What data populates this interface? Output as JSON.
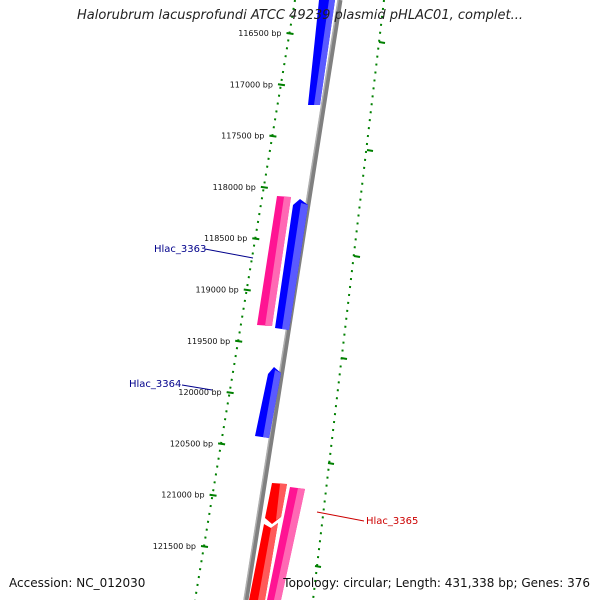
{
  "title": "Halorubrum lacusprofundi ATCC 49239 plasmid pHLAC01, complet...",
  "footer": {
    "accession": "Accession: NC_012030",
    "summary": "Topology: circular; Length: 431,338 bp; Genes: 376"
  },
  "colors": {
    "forward_strand": "#0000ff",
    "reverse_strand": "#ff0000",
    "pseudo_strand": "#ff1493",
    "backbone": "#808080",
    "tick": "#008000"
  },
  "position_ticks": [
    {
      "bp": 116500,
      "label": "116500 bp"
    },
    {
      "bp": 117000,
      "label": "117000 bp"
    },
    {
      "bp": 117500,
      "label": "117500 bp"
    },
    {
      "bp": 118000,
      "label": "118000 bp"
    },
    {
      "bp": 118500,
      "label": "118500 bp"
    },
    {
      "bp": 119000,
      "label": "119000 bp"
    },
    {
      "bp": 119500,
      "label": "119500 bp"
    },
    {
      "bp": 120000,
      "label": "120000 bp"
    },
    {
      "bp": 120500,
      "label": "120500 bp"
    },
    {
      "bp": 121000,
      "label": "121000 bp"
    },
    {
      "bp": 121500,
      "label": "121500 bp"
    }
  ],
  "gene_labels": [
    {
      "name": "Hlac_3363",
      "color": "#00008b"
    },
    {
      "name": "Hlac_3364",
      "color": "#00008b"
    },
    {
      "name": "Hlac_3365",
      "color": "#cc0000"
    }
  ]
}
